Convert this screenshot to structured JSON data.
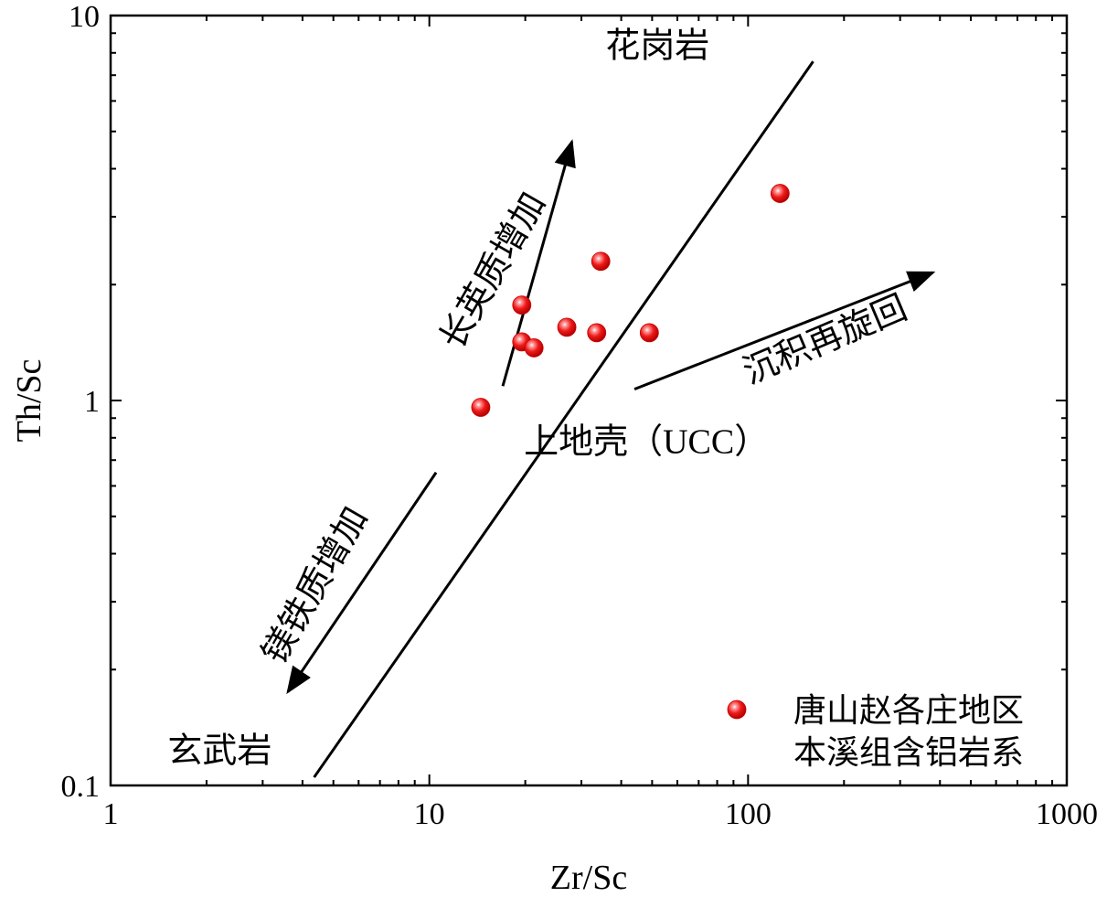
{
  "chart_data": {
    "type": "scatter",
    "xlabel": "Zr/Sc",
    "ylabel": "Th/Sc",
    "xscale": "log",
    "yscale": "log",
    "xlim": [
      1,
      1000
    ],
    "ylim": [
      0.1,
      10
    ],
    "xticks": [
      "1",
      "10",
      "100",
      "1000"
    ],
    "yticks": [
      "0.1",
      "1",
      "10"
    ],
    "grid": false,
    "legend_position": "bottom-right",
    "series": [
      {
        "name": "唐山赵各庄地区\n本溪组含铝岩系",
        "legend_lines": [
          "唐山赵各庄地区",
          "本溪组含铝岩系"
        ],
        "color": "#e8141b",
        "points": [
          {
            "x": 14.5,
            "y": 0.96
          },
          {
            "x": 19.5,
            "y": 1.77
          },
          {
            "x": 19.5,
            "y": 1.42
          },
          {
            "x": 21.3,
            "y": 1.37
          },
          {
            "x": 27.0,
            "y": 1.55
          },
          {
            "x": 33.5,
            "y": 1.5
          },
          {
            "x": 34.5,
            "y": 2.3
          },
          {
            "x": 49.0,
            "y": 1.5
          },
          {
            "x": 126.0,
            "y": 3.45
          }
        ]
      }
    ],
    "trend_line": {
      "from": {
        "x": 4.35,
        "y": 0.105
      },
      "to": {
        "x": 160,
        "y": 7.6
      }
    },
    "arrows": [
      {
        "name": "felsic-arrow",
        "from": {
          "x": 17,
          "y": 1.09
        },
        "to": {
          "x": 28,
          "y": 4.7
        }
      },
      {
        "name": "mafic-arrow",
        "from": {
          "x": 10.5,
          "y": 0.65
        },
        "to": {
          "x": 3.6,
          "y": 0.175
        }
      },
      {
        "name": "recycling-arrow",
        "from": {
          "x": 44,
          "y": 1.07
        },
        "to": {
          "x": 380,
          "y": 2.15
        }
      }
    ],
    "annotations": [
      {
        "name": "granite-label",
        "text": "花岗岩",
        "x": 52,
        "y": 7.8,
        "rotate": 0
      },
      {
        "name": "felsic-label",
        "text": "长英质增加",
        "x": 17,
        "y": 2.1,
        "rotate": -60
      },
      {
        "name": "recycling-label",
        "text": "沉积再旋回",
        "x": 180,
        "y": 1.35,
        "rotate": -23
      },
      {
        "name": "ucc-label",
        "text": "上地壳（UCC）",
        "x": 48,
        "y": 0.73,
        "rotate": 0
      },
      {
        "name": "mafic-label",
        "text": "镁铁质增加",
        "x": 4.7,
        "y": 0.32,
        "rotate": -60
      },
      {
        "name": "basalt-label",
        "text": "玄武岩",
        "x": 2.2,
        "y": 0.115,
        "rotate": 0
      }
    ]
  }
}
